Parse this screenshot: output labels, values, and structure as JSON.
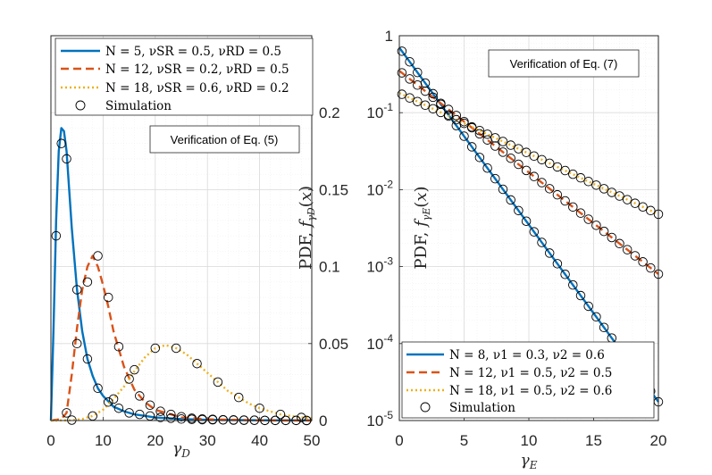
{
  "chart_data": [
    {
      "type": "line",
      "xlabel": "γD",
      "ylabel": "PDF, fγD(x)",
      "xlim": [
        0,
        50
      ],
      "ylim": [
        0,
        0.25
      ],
      "yscale": "linear",
      "x_ticks": [
        "0",
        "10",
        "20",
        "30",
        "40",
        "50"
      ],
      "y_ticks": [
        "0",
        "0.05",
        "0.1",
        "0.15",
        "0.2"
      ],
      "y_axis_side": "right",
      "grid": true,
      "legend_position": "top-left",
      "annotation": "Verification of Eq. (5)",
      "series": [
        {
          "name": "N = 5, νSR = 0.5, νRD = 0.5",
          "color": "#0072BD",
          "style": "solid",
          "x": [
            0,
            0.5,
            1,
            1.5,
            2,
            2.5,
            3,
            3.5,
            4,
            5,
            6,
            7,
            8,
            9,
            10,
            12,
            14,
            16,
            18,
            20,
            25,
            30,
            35,
            40,
            45,
            50
          ],
          "y": [
            0,
            0.06,
            0.13,
            0.175,
            0.19,
            0.188,
            0.175,
            0.15,
            0.125,
            0.085,
            0.058,
            0.04,
            0.029,
            0.021,
            0.016,
            0.009,
            0.006,
            0.004,
            0.003,
            0.002,
            0.001,
            0.0005,
            0.0003,
            0.0002,
            0.0001,
            0.0001
          ]
        },
        {
          "name": "N = 12, νSR = 0.2, νRD = 0.5",
          "color": "#D95319",
          "style": "dashed",
          "x": [
            0,
            2,
            3,
            4,
            5,
            6,
            7,
            8,
            9,
            10,
            11,
            12,
            14,
            16,
            18,
            20,
            25,
            30,
            40,
            50
          ],
          "y": [
            0,
            0.001,
            0.005,
            0.03,
            0.06,
            0.085,
            0.1,
            0.107,
            0.1,
            0.088,
            0.074,
            0.058,
            0.035,
            0.02,
            0.012,
            0.007,
            0.002,
            0.0008,
            0.0001,
            0
          ],
          "sim_x": [
            3,
            5,
            7,
            9,
            11,
            13,
            15,
            17,
            19,
            21,
            23,
            25,
            27,
            29,
            31,
            33,
            35,
            37,
            39,
            41,
            43,
            45,
            47,
            49
          ],
          "sim_y": [
            0.005,
            0.05,
            0.09,
            0.107,
            0.08,
            0.048,
            0.027,
            0.016,
            0.01,
            0.006,
            0.004,
            0.0025,
            0.0015,
            0.001,
            0.0008,
            0.0005,
            0.0004,
            0.0003,
            0.0002,
            0.0001,
            0.0001,
            0.0001,
            0.0001,
            0
          ]
        },
        {
          "name": "N = 18, νSR = 0.6, νRD = 0.2",
          "color": "#EDB120",
          "style": "dotted",
          "x": [
            0,
            4,
            6,
            8,
            10,
            12,
            14,
            16,
            18,
            20,
            22,
            24,
            26,
            28,
            30,
            32,
            34,
            36,
            38,
            40,
            42,
            44,
            46,
            48,
            50
          ],
          "y": [
            0,
            0.0002,
            0.001,
            0.003,
            0.007,
            0.014,
            0.022,
            0.032,
            0.041,
            0.047,
            0.049,
            0.047,
            0.043,
            0.037,
            0.031,
            0.025,
            0.019,
            0.015,
            0.011,
            0.008,
            0.006,
            0.004,
            0.003,
            0.002,
            0.0015
          ],
          "sim_x": [
            4,
            8,
            12,
            16,
            20,
            24,
            28,
            32,
            36,
            40,
            44,
            48
          ],
          "sim_y": [
            0.0003,
            0.003,
            0.014,
            0.033,
            0.047,
            0.047,
            0.037,
            0.025,
            0.015,
            0.008,
            0.004,
            0.002
          ]
        }
      ],
      "simulation_markers": {
        "name": "Simulation",
        "x": [
          1,
          2,
          3,
          5,
          7,
          9,
          11,
          13,
          15,
          17,
          19,
          21,
          23,
          25,
          27,
          29,
          31,
          33,
          35,
          37,
          39,
          41,
          43,
          45,
          47,
          49
        ],
        "y": [
          0.12,
          0.18,
          0.17,
          0.085,
          0.04,
          0.021,
          0.012,
          0.008,
          0.005,
          0.004,
          0.003,
          0.002,
          0.0015,
          0.001,
          0.0008,
          0.0006,
          0.0005,
          0.0004,
          0.0003,
          0.0002,
          0.0002,
          0.0001,
          0.0001,
          0.0001,
          0.0001,
          0.0001
        ]
      }
    },
    {
      "type": "line",
      "xlabel": "γE",
      "ylabel": "PDF, fγE(x)",
      "xlim": [
        0,
        20
      ],
      "ylim": [
        1e-05,
        1
      ],
      "yscale": "log",
      "x_ticks": [
        "0",
        "5",
        "10",
        "15",
        "20"
      ],
      "y_ticks": [
        "1",
        "10-1",
        "10-2",
        "10-3",
        "10-4",
        "10-5"
      ],
      "grid": true,
      "legend_position": "bottom-left",
      "annotation": "Verification of Eq. (7)",
      "series": [
        {
          "name": "N = 8, ν1 = 0.3, ν2 = 0.6",
          "color": "#0072BD",
          "style": "solid",
          "x": [
            0,
            20
          ],
          "y": [
            0.7,
            1.75e-05
          ]
        },
        {
          "name": "N = 12, ν1 = 0.5, ν2 = 0.5",
          "color": "#D95319",
          "style": "dashed",
          "x": [
            0,
            20
          ],
          "y": [
            0.35,
            0.0008
          ]
        },
        {
          "name": "N = 18, ν1 = 0.5, ν2 = 0.6",
          "color": "#EDB120",
          "style": "dotted",
          "x": [
            0,
            20
          ],
          "y": [
            0.18,
            0.0048
          ]
        }
      ],
      "simulation_markers": {
        "name": "Simulation",
        "x_start": 0.2,
        "x_step": 0.6,
        "x_end": 20
      }
    }
  ]
}
